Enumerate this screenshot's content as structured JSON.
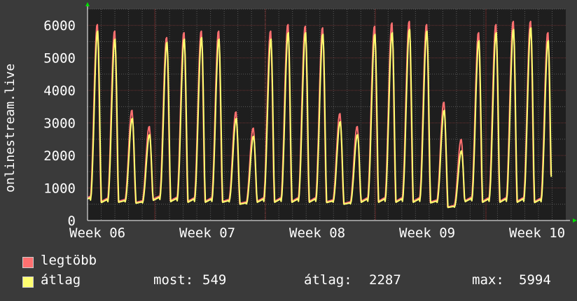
{
  "chart_data": {
    "type": "line",
    "ylabel": "onlinestream.live",
    "ylim": [
      0,
      6500
    ],
    "yticks": [
      0,
      1000,
      2000,
      3000,
      4000,
      5000,
      6000
    ],
    "xticks": [
      "Week 06",
      "Week 07",
      "Week 08",
      "Week 09",
      "Week 10"
    ],
    "grid": true,
    "days": 35,
    "series": [
      {
        "name": "legtöbb",
        "color": "#ff7070",
        "daily_peaks": [
          6050,
          5850,
          3400,
          2900,
          5650,
          5800,
          5850,
          5850,
          3350,
          2850,
          5850,
          6050,
          6000,
          5950,
          3300,
          2900,
          6000,
          6100,
          6150,
          6050,
          3650,
          2500,
          5800,
          6050,
          6150,
          6150,
          5800
        ]
      },
      {
        "name": "átlag",
        "color": "#ffff70",
        "daily_peaks": [
          5850,
          5600,
          3150,
          2650,
          5500,
          5600,
          5650,
          5600,
          3150,
          2600,
          5600,
          5800,
          5800,
          5750,
          3050,
          2650,
          5750,
          5800,
          5900,
          5850,
          3400,
          2150,
          5550,
          5800,
          5900,
          5950,
          5550
        ]
      }
    ],
    "night_min": [
      600,
      550,
      560,
      530,
      620,
      580,
      560,
      560,
      560,
      500,
      560,
      560,
      560,
      560,
      550,
      500,
      560,
      560,
      560,
      560,
      540,
      400,
      580,
      560,
      560,
      560,
      550
    ]
  },
  "legend": {
    "max_label": "legtöbb",
    "avg_label": "átlag",
    "stats": [
      {
        "label": "most:",
        "value": "549"
      },
      {
        "label": "átlag:",
        "value": "2287"
      },
      {
        "label": "max:",
        "value": "5994"
      }
    ]
  },
  "colors": {
    "background": "#3a3a3a",
    "plot_bg": "#1e1e1e",
    "grid": "#5a5a5a",
    "week_grid": "#a03030",
    "axis": "#ffffff",
    "arrow": "#00dd00"
  }
}
